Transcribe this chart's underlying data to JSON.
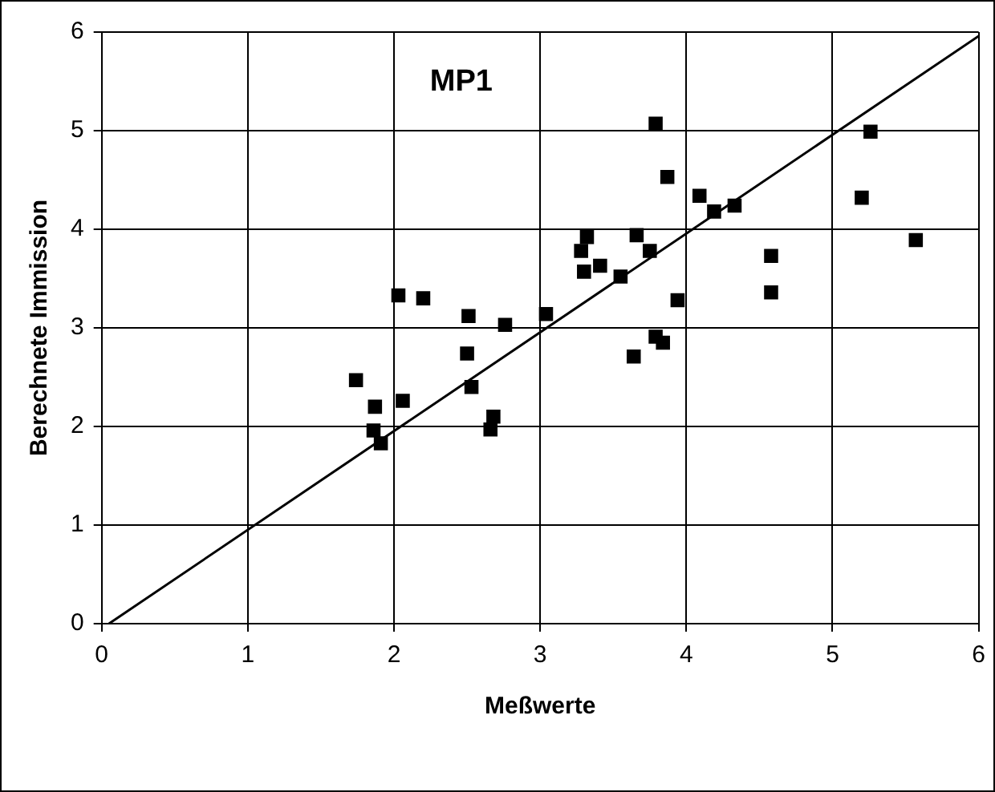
{
  "chart_data": {
    "type": "scatter",
    "title": "MP1",
    "xlabel": "Meßwerte",
    "ylabel": "Berechnete Immission",
    "xlim": [
      0,
      6
    ],
    "xticks": [
      0,
      1,
      2,
      3,
      4,
      5,
      6
    ],
    "ylim": [
      0,
      6
    ],
    "yticks": [
      0,
      1,
      2,
      3,
      4,
      5,
      6
    ],
    "grid": true,
    "legend": false,
    "marker": "square",
    "series": [
      {
        "color": "#000000",
        "x": [
          3.79,
          3.87,
          4.09,
          4.19,
          4.33,
          5.26,
          5.2,
          5.57,
          4.58,
          4.58,
          3.32,
          3.28,
          3.66,
          3.75,
          3.3,
          3.41,
          3.55,
          3.94,
          3.79,
          3.84,
          3.64,
          3.04,
          2.76,
          2.51,
          2.5,
          2.53,
          2.68,
          2.66,
          2.2,
          2.03,
          1.74,
          1.87,
          1.86,
          1.91,
          2.06
        ],
        "values": [
          5.07,
          4.53,
          4.34,
          4.18,
          4.24,
          4.99,
          4.32,
          3.89,
          3.73,
          3.36,
          3.92,
          3.78,
          3.94,
          3.78,
          3.57,
          3.63,
          3.52,
          3.28,
          2.91,
          2.85,
          2.71,
          3.14,
          3.03,
          3.12,
          2.74,
          2.4,
          2.1,
          1.97,
          3.3,
          3.33,
          2.47,
          2.2,
          1.96,
          1.83,
          2.26
        ]
      },
      {
        "type": "line",
        "color": "#000000",
        "marker": "none",
        "x": [
          0.05,
          6
        ],
        "values": [
          0,
          5.96
        ]
      }
    ]
  }
}
